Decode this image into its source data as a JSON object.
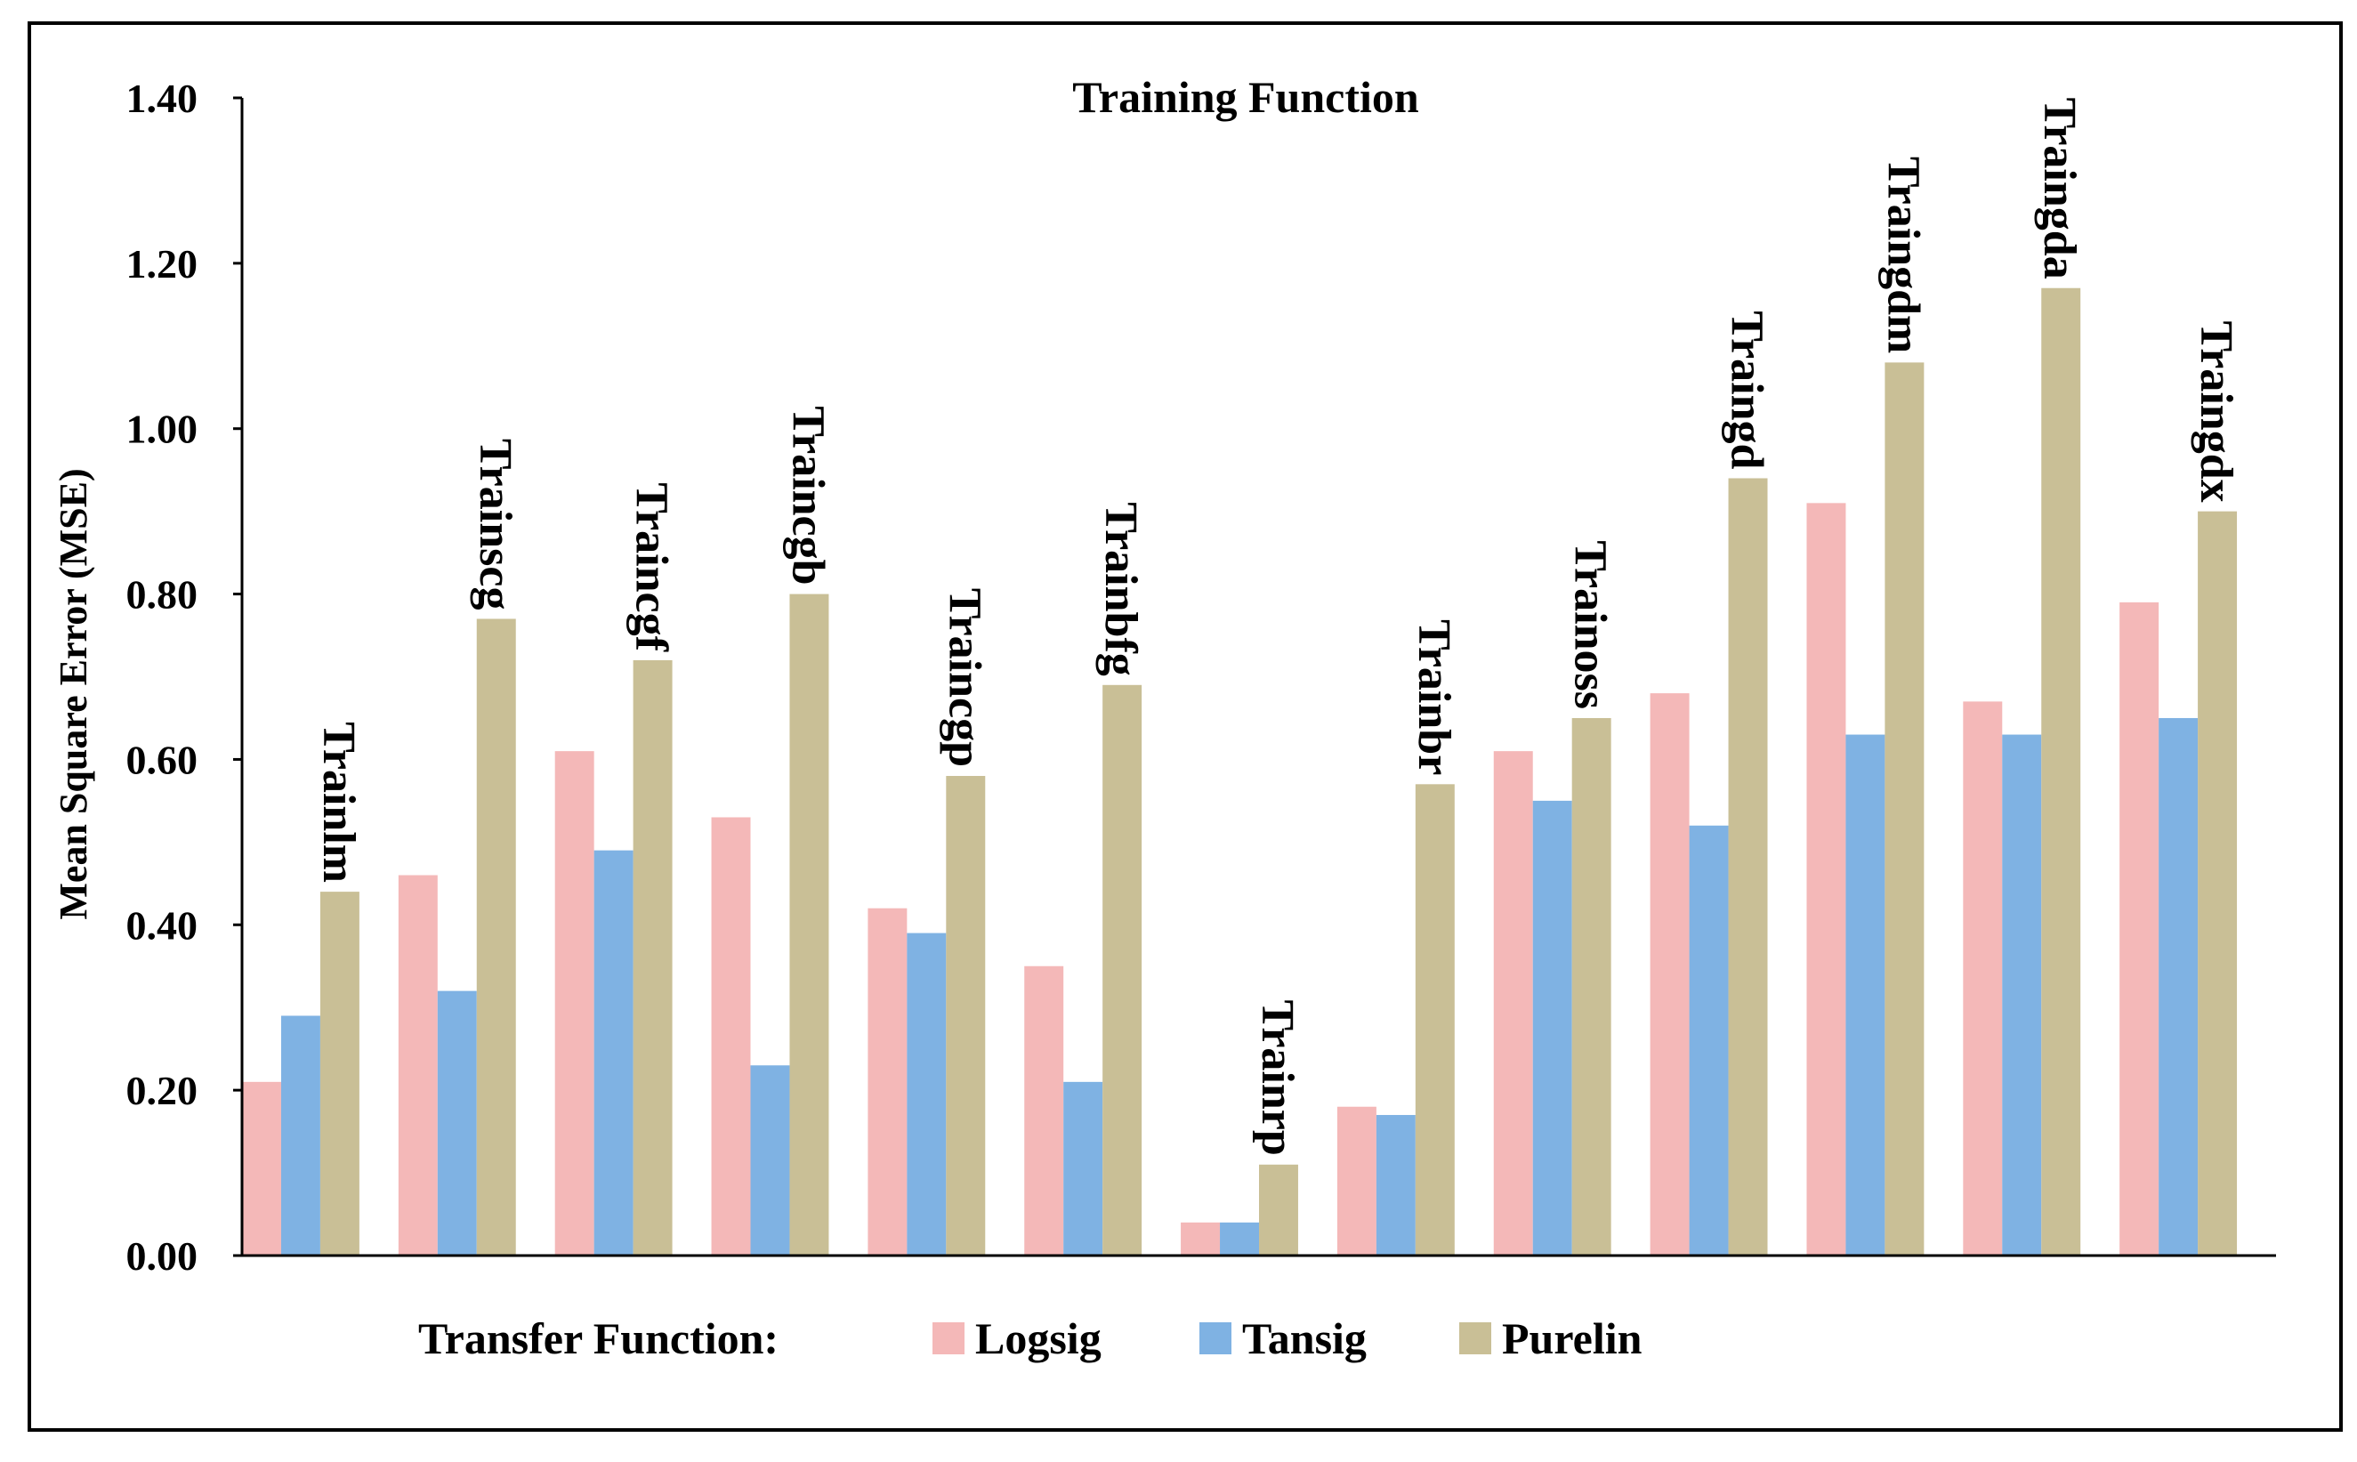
{
  "chart_data": {
    "type": "bar",
    "title": "Training Function",
    "ylabel": "Mean Square Error (MSE)",
    "xlabel": "",
    "ylim": [
      0,
      1.4
    ],
    "yticks": [
      "0.00",
      "0.20",
      "0.40",
      "0.60",
      "0.80",
      "1.00",
      "1.20",
      "1.40"
    ],
    "grid": false,
    "legend_position": "bottom",
    "legend_title": "Transfer Function:",
    "categories": [
      "Trainlm",
      "Trainscg",
      "Traincgf",
      "Traincgb",
      "Traincgp",
      "Trainbfg",
      "Trainrp",
      "Trainbr",
      "Trainoss",
      "Traingd",
      "Traingdm",
      "Traingda",
      "Traingdx"
    ],
    "series": [
      {
        "name": "Logsig",
        "color": "#f4b8b8",
        "values": [
          0.21,
          0.46,
          0.61,
          0.53,
          0.42,
          0.35,
          0.04,
          0.18,
          0.61,
          0.68,
          0.91,
          0.67,
          0.79
        ]
      },
      {
        "name": "Tansig",
        "color": "#7fb2e3",
        "values": [
          0.29,
          0.32,
          0.49,
          0.23,
          0.39,
          0.21,
          0.04,
          0.17,
          0.55,
          0.52,
          0.63,
          0.63,
          0.65
        ]
      },
      {
        "name": "Purelin",
        "color": "#c9bf96",
        "values": [
          0.44,
          0.77,
          0.72,
          0.8,
          0.58,
          0.69,
          0.11,
          0.57,
          0.65,
          0.94,
          1.08,
          1.17,
          0.9
        ]
      }
    ]
  }
}
